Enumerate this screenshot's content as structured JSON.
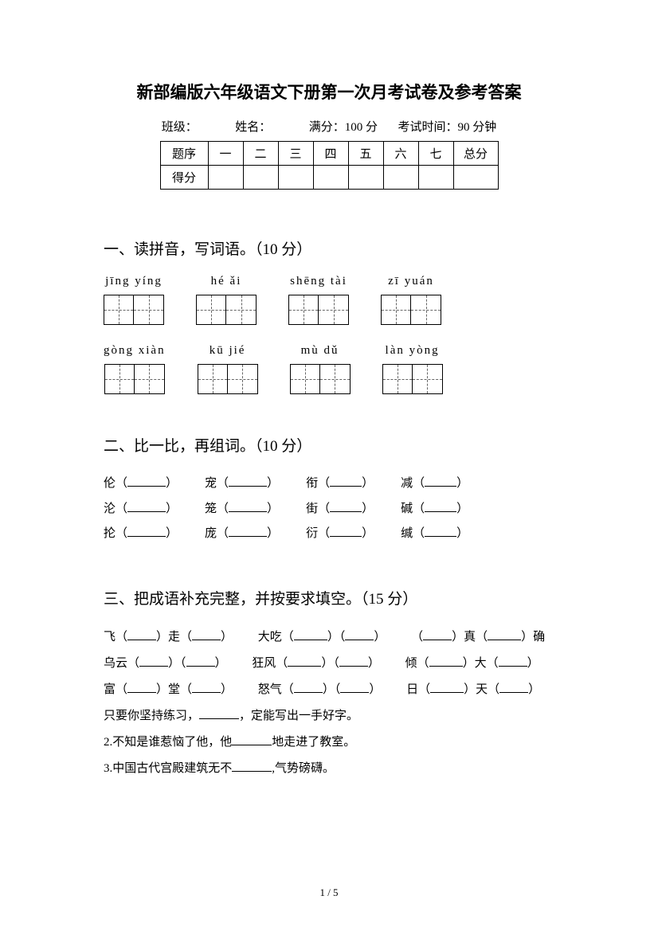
{
  "title": "新部编版六年级语文下册第一次月考试卷及参考答案",
  "meta": {
    "class_label": "班级：",
    "name_label": "姓名：",
    "full_score_label": "满分：100 分",
    "duration_label": "考试时间：90 分钟"
  },
  "score_table": {
    "row1": [
      "题序",
      "一",
      "二",
      "三",
      "四",
      "五",
      "六",
      "七",
      "总分"
    ],
    "row2_label": "得分"
  },
  "section1": {
    "heading": "一、读拼音，写词语。（10 分）",
    "row1": [
      {
        "pinyin": "jīng  yíng",
        "boxes": 2
      },
      {
        "pinyin": "hé ǎi",
        "boxes": 2
      },
      {
        "pinyin": "shēng tài",
        "boxes": 2
      },
      {
        "pinyin": "zī yuán",
        "boxes": 2
      }
    ],
    "row2": [
      {
        "pinyin": "gòng xiàn",
        "boxes": 2
      },
      {
        "pinyin": "kū jié",
        "boxes": 2
      },
      {
        "pinyin": "mù dǔ",
        "boxes": 2
      },
      {
        "pinyin": "làn yòng",
        "boxes": 2
      }
    ]
  },
  "section2": {
    "heading": "二、比一比，再组词。（10 分）",
    "lines": [
      [
        "伦",
        "宠",
        "衔",
        "减"
      ],
      [
        "沦",
        "笼",
        "街",
        "碱"
      ],
      [
        "抡",
        "庞",
        "衍",
        "缄"
      ]
    ]
  },
  "section3": {
    "heading": "三、把成语补充完整，并按要求填空。（15 分）",
    "line1_a": "飞（",
    "line1_b": "）走（",
    "line1_c": "）",
    "line1_d": "大吃（",
    "line1_e": "）（",
    "line1_f": "）",
    "line1_g": "（",
    "line1_h": "）真（",
    "line1_i": "）确",
    "line2_a": "乌云（",
    "line2_b": "）（",
    "line2_c": "）",
    "line2_d": "狂风（",
    "line2_e": "）（",
    "line2_f": "）",
    "line2_g": "倾（",
    "line2_h": "）大（",
    "line2_i": "）",
    "line3_a": "富（",
    "line3_b": "）堂（",
    "line3_c": "）",
    "line3_d": "怒气（",
    "line3_e": "）（",
    "line3_f": "）",
    "line3_g": "日（",
    "line3_h": "）天（",
    "line3_i": "）",
    "sent1_a": "只要你坚持练习，",
    "sent1_b": "，定能写出一手好字。",
    "sent2_a": "2.不知是谁惹恼了他，他",
    "sent2_b": "地走进了教室。",
    "sent3_a": "3.中国古代宫殿建筑无不",
    "sent3_b": ",气势磅礴。"
  },
  "page_num": "1  / 5"
}
